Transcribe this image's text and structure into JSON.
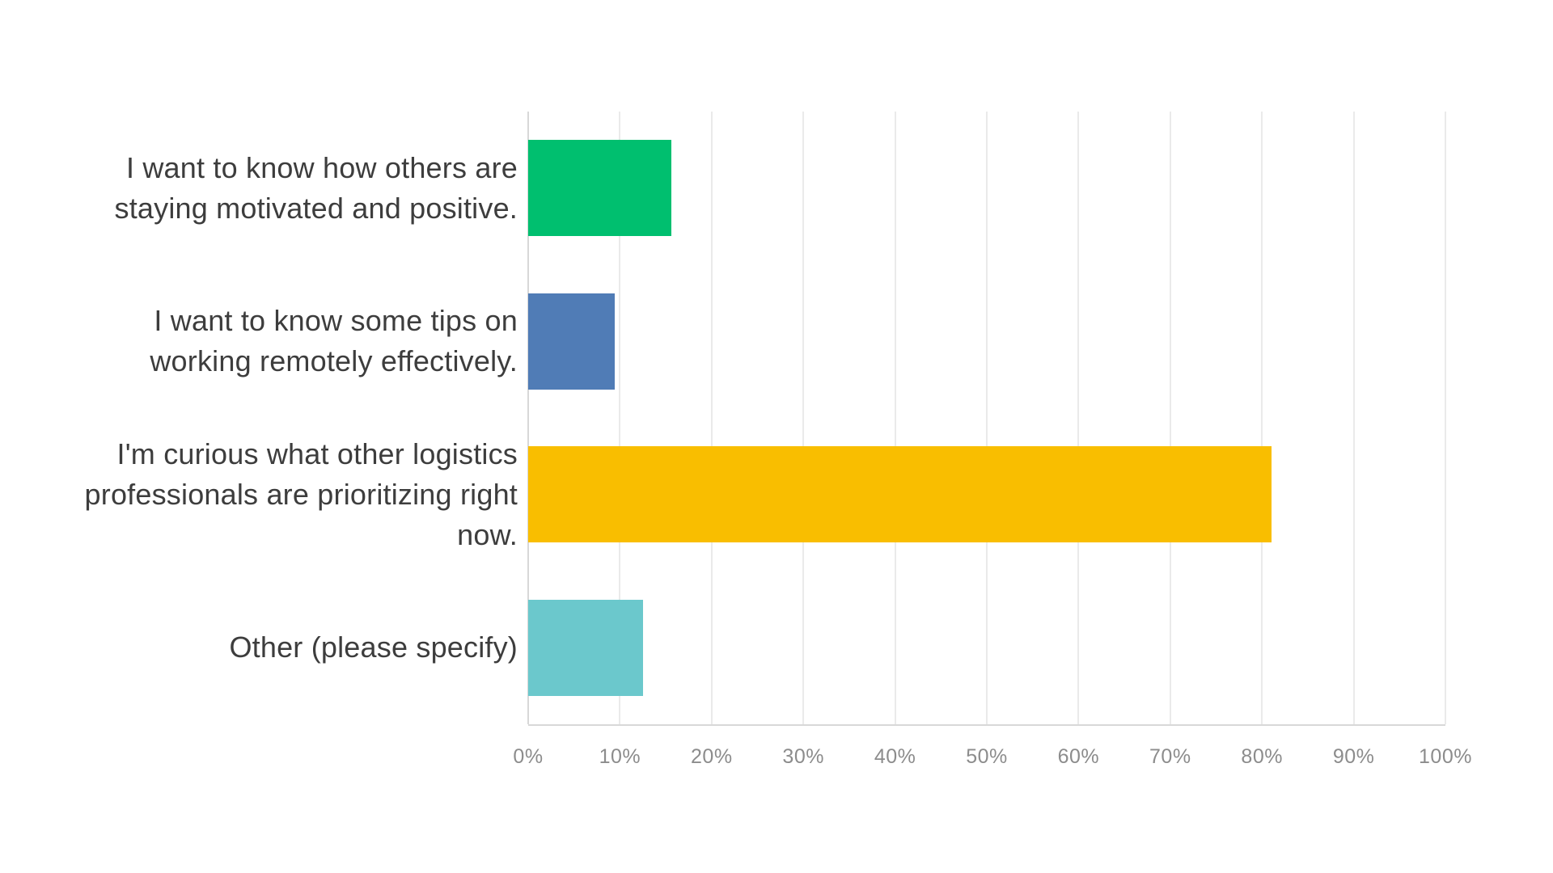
{
  "chart_data": {
    "type": "bar",
    "orientation": "horizontal",
    "title": "",
    "xlabel": "",
    "ylabel": "",
    "categories": [
      "I want to know how others are staying motivated and positive.",
      "I want to know some tips on working remotely effectively.",
      "I'm curious what other logistics professionals are prioritizing right now.",
      "Other (please specify)"
    ],
    "values": [
      15.6,
      9.4,
      81.0,
      12.5
    ],
    "value_unit": "%",
    "bar_colors": [
      "#00BF6F",
      "#507CB6",
      "#F9BE00",
      "#6BC8CC"
    ],
    "x_axis": {
      "min": 0,
      "max": 100,
      "step": 10,
      "tick_labels": [
        "0%",
        "10%",
        "20%",
        "30%",
        "40%",
        "50%",
        "60%",
        "70%",
        "80%",
        "90%",
        "100%"
      ]
    },
    "grid": "vertical",
    "legend_position": "none"
  },
  "colors": {
    "background": "#FFFFFF",
    "gridline": "#EAEAEA",
    "axis_line": "#D8D8D8",
    "tick_label": "#8C8C8C",
    "category_label": "#3D3D3D"
  }
}
